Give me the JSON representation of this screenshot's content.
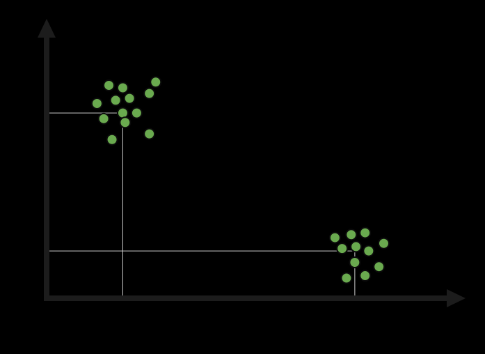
{
  "chart_data": {
    "type": "scatter",
    "title": "",
    "xlabel": "",
    "ylabel": "",
    "xlim": [
      0,
      10
    ],
    "ylim": [
      0,
      10
    ],
    "grid": false,
    "legend": "none",
    "colors": {
      "background": "#000000",
      "axis": "#1c1c1c",
      "point_fill": "#6aaa4f",
      "point_stroke": "#0b0b0b",
      "guide": "#d0d0d0"
    },
    "series": [
      {
        "points": [
          {
            "x": 1.57,
            "y": 7.88
          },
          {
            "x": 1.92,
            "y": 7.79
          },
          {
            "x": 2.75,
            "y": 8.0
          },
          {
            "x": 1.27,
            "y": 7.21
          },
          {
            "x": 1.74,
            "y": 7.33
          },
          {
            "x": 2.09,
            "y": 7.4
          },
          {
            "x": 2.59,
            "y": 7.58
          },
          {
            "x": 1.92,
            "y": 6.86
          },
          {
            "x": 2.27,
            "y": 6.86
          },
          {
            "x": 1.44,
            "y": 6.65
          },
          {
            "x": 1.98,
            "y": 6.51
          },
          {
            "x": 2.59,
            "y": 6.09
          },
          {
            "x": 1.65,
            "y": 5.88
          }
        ]
      },
      {
        "points": [
          {
            "x": 7.27,
            "y": 2.26
          },
          {
            "x": 7.68,
            "y": 2.37
          },
          {
            "x": 8.03,
            "y": 2.44
          },
          {
            "x": 8.5,
            "y": 2.05
          },
          {
            "x": 7.45,
            "y": 1.86
          },
          {
            "x": 7.8,
            "y": 1.93
          },
          {
            "x": 8.12,
            "y": 1.77
          },
          {
            "x": 7.77,
            "y": 1.35
          },
          {
            "x": 8.38,
            "y": 1.19
          },
          {
            "x": 8.03,
            "y": 0.86
          },
          {
            "x": 7.56,
            "y": 0.77
          }
        ]
      }
    ],
    "guides": [
      {
        "x": 1.92,
        "y": 6.86
      },
      {
        "x": 7.77,
        "y": 1.77
      }
    ]
  }
}
